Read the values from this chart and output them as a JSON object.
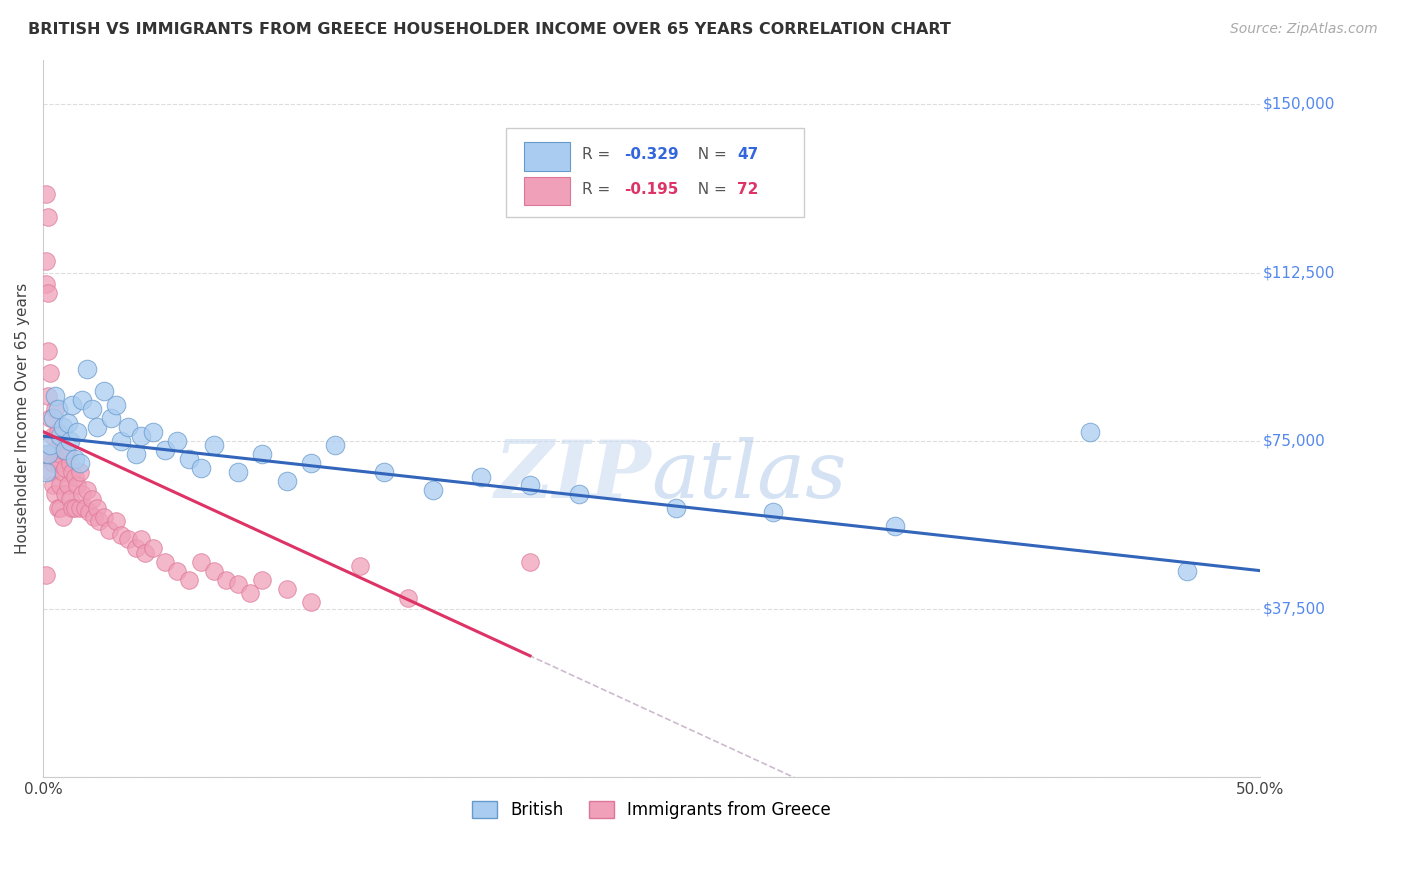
{
  "title": "BRITISH VS IMMIGRANTS FROM GREECE HOUSEHOLDER INCOME OVER 65 YEARS CORRELATION CHART",
  "source": "Source: ZipAtlas.com",
  "ylabel": "Householder Income Over 65 years",
  "x_min": 0.0,
  "x_max": 0.5,
  "y_min": 0,
  "y_max": 160000,
  "yticks": [
    0,
    37500,
    75000,
    112500,
    150000
  ],
  "ytick_labels": [
    "",
    "$37,500",
    "$75,000",
    "$112,500",
    "$150,000"
  ],
  "xticks": [
    0.0,
    0.05,
    0.1,
    0.15,
    0.2,
    0.25,
    0.3,
    0.35,
    0.4,
    0.45,
    0.5
  ],
  "xtick_labels": [
    "0.0%",
    "",
    "",
    "",
    "",
    "",
    "",
    "",
    "",
    "",
    "50.0%"
  ],
  "british_color": "#aaccf0",
  "greece_color": "#f0a0b8",
  "british_edge": "#6699cc",
  "greece_edge": "#dd7799",
  "trendline_british_color": "#3366bb",
  "trendline_greece_color": "#dd3366",
  "dashed_color": "#ccbbcc",
  "watermark_color": "#c8d8f0",
  "background_color": "#ffffff",
  "grid_color": "#dddddd",
  "british_intercept": 76000,
  "british_slope": -60000,
  "greece_intercept": 77000,
  "greece_slope": -250000,
  "british_x": [
    0.001,
    0.002,
    0.003,
    0.004,
    0.005,
    0.006,
    0.007,
    0.008,
    0.009,
    0.01,
    0.011,
    0.012,
    0.013,
    0.014,
    0.015,
    0.016,
    0.018,
    0.02,
    0.022,
    0.025,
    0.028,
    0.03,
    0.032,
    0.035,
    0.038,
    0.04,
    0.045,
    0.05,
    0.055,
    0.06,
    0.065,
    0.07,
    0.08,
    0.09,
    0.1,
    0.11,
    0.12,
    0.14,
    0.16,
    0.18,
    0.2,
    0.22,
    0.26,
    0.3,
    0.35,
    0.43,
    0.47
  ],
  "british_y": [
    68000,
    72000,
    74000,
    80000,
    85000,
    82000,
    76000,
    78000,
    73000,
    79000,
    75000,
    83000,
    71000,
    77000,
    70000,
    84000,
    91000,
    82000,
    78000,
    86000,
    80000,
    83000,
    75000,
    78000,
    72000,
    76000,
    77000,
    73000,
    75000,
    71000,
    69000,
    74000,
    68000,
    72000,
    66000,
    70000,
    74000,
    68000,
    64000,
    67000,
    65000,
    63000,
    60000,
    59000,
    56000,
    77000,
    46000
  ],
  "greece_x": [
    0.001,
    0.001,
    0.001,
    0.002,
    0.002,
    0.002,
    0.002,
    0.003,
    0.003,
    0.003,
    0.003,
    0.004,
    0.004,
    0.004,
    0.005,
    0.005,
    0.005,
    0.006,
    0.006,
    0.006,
    0.007,
    0.007,
    0.007,
    0.008,
    0.008,
    0.008,
    0.009,
    0.009,
    0.01,
    0.01,
    0.011,
    0.011,
    0.012,
    0.012,
    0.013,
    0.013,
    0.014,
    0.015,
    0.015,
    0.016,
    0.017,
    0.018,
    0.019,
    0.02,
    0.021,
    0.022,
    0.023,
    0.025,
    0.027,
    0.03,
    0.032,
    0.035,
    0.038,
    0.04,
    0.042,
    0.045,
    0.05,
    0.055,
    0.06,
    0.065,
    0.07,
    0.075,
    0.08,
    0.085,
    0.09,
    0.1,
    0.11,
    0.13,
    0.15,
    0.2,
    0.001,
    0.001
  ],
  "greece_y": [
    130000,
    115000,
    110000,
    125000,
    108000,
    95000,
    85000,
    90000,
    80000,
    72000,
    68000,
    76000,
    70000,
    65000,
    82000,
    73000,
    63000,
    77000,
    70000,
    60000,
    72000,
    65000,
    60000,
    73000,
    68000,
    58000,
    69000,
    63000,
    72000,
    65000,
    70000,
    62000,
    68000,
    60000,
    67000,
    60000,
    65000,
    68000,
    60000,
    63000,
    60000,
    64000,
    59000,
    62000,
    58000,
    60000,
    57000,
    58000,
    55000,
    57000,
    54000,
    53000,
    51000,
    53000,
    50000,
    51000,
    48000,
    46000,
    44000,
    48000,
    46000,
    44000,
    43000,
    41000,
    44000,
    42000,
    39000,
    47000,
    40000,
    48000,
    72000,
    45000
  ]
}
